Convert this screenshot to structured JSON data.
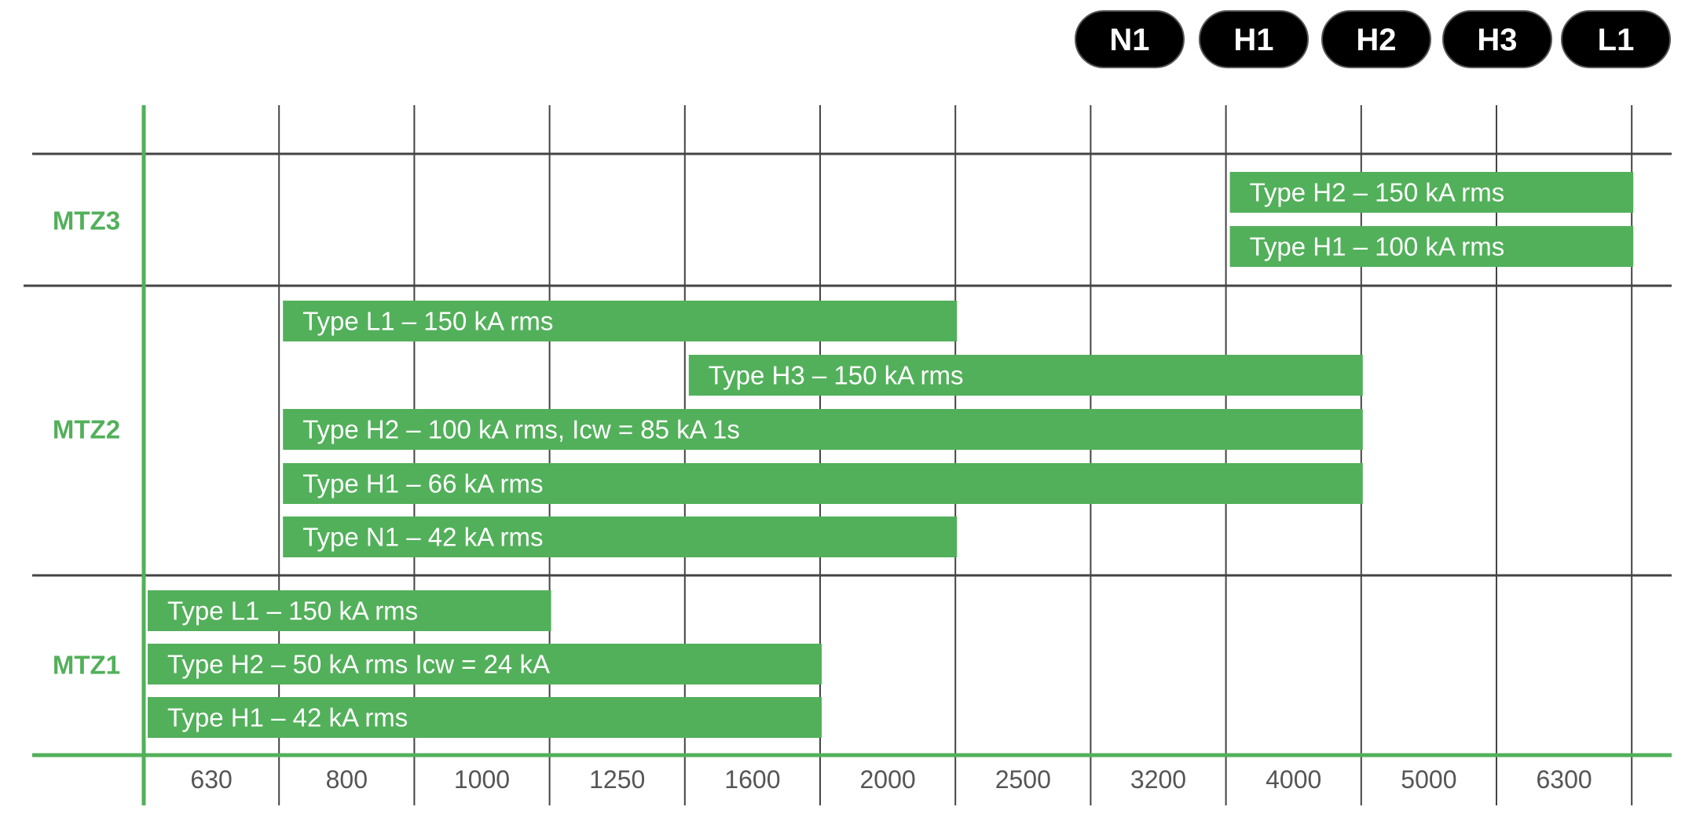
{
  "legend": [
    "N1",
    "H1",
    "H2",
    "H3",
    "L1"
  ],
  "ratings": [
    "630",
    "800",
    "1000",
    "1250",
    "1600",
    "2000",
    "2500",
    "3200",
    "4000",
    "5000",
    "6300"
  ],
  "groups": [
    {
      "name": "MTZ3",
      "bars": [
        {
          "label": "Type H2 – 150 kA rms",
          "from": "4000",
          "to": "6300"
        },
        {
          "label": "Type H1 – 100 kA rms",
          "from": "4000",
          "to": "6300"
        }
      ]
    },
    {
      "name": "MTZ2",
      "bars": [
        {
          "label": "Type L1 – 150 kA rms",
          "from": "800",
          "to": "2000"
        },
        {
          "label": "Type H3 – 150 kA rms",
          "from": "1600",
          "to": "4000"
        },
        {
          "label": "Type H2 – 100 kA rms, Icw = 85 kA 1s",
          "from": "800",
          "to": "4000"
        },
        {
          "label": "Type H1 – 66 kA rms",
          "from": "800",
          "to": "4000"
        },
        {
          "label": "Type N1 – 42 kA rms",
          "from": "800",
          "to": "2000"
        }
      ]
    },
    {
      "name": "MTZ1",
      "bars": [
        {
          "label": "Type L1 – 150 kA rms",
          "from": "630",
          "to": "1000"
        },
        {
          "label": "Type H2 – 50 kA rms Icw = 24 kA",
          "from": "630",
          "to": "1600"
        },
        {
          "label": "Type H1 – 42 kA rms",
          "from": "630",
          "to": "1600"
        }
      ]
    }
  ]
}
